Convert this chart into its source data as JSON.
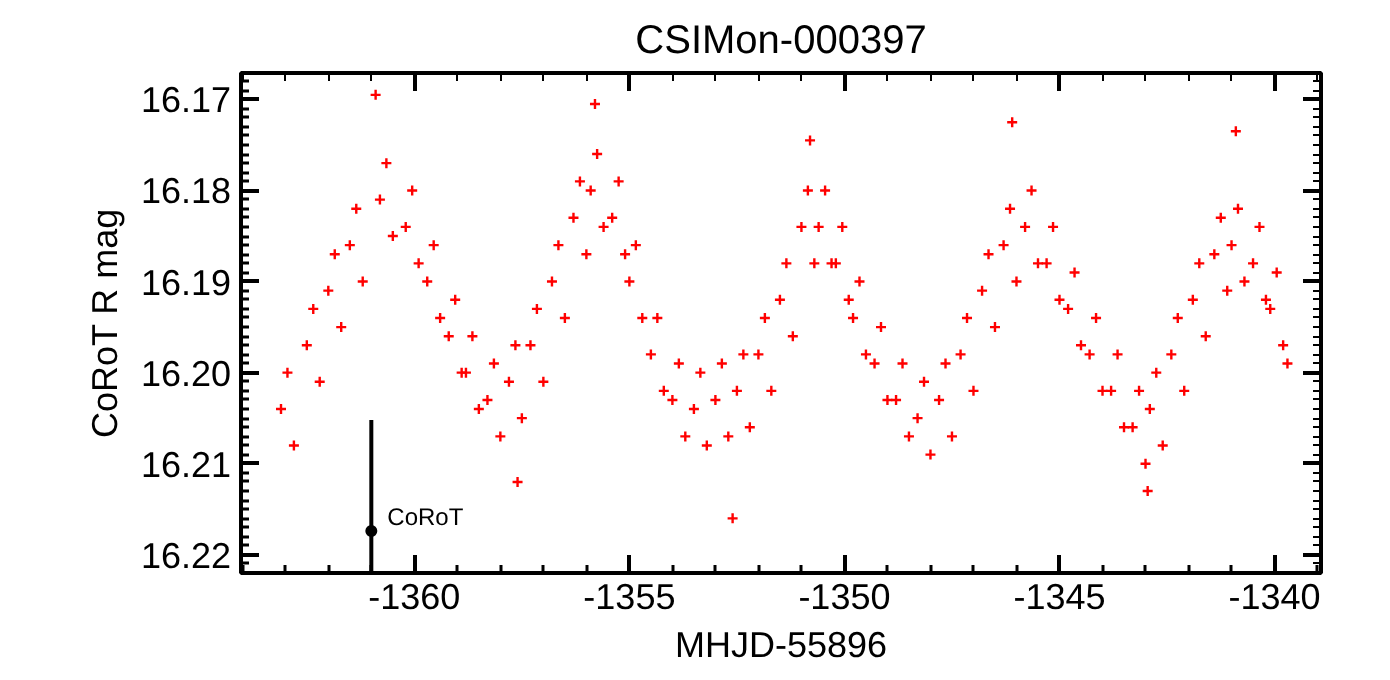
{
  "chart_data": {
    "type": "scatter",
    "title": "CSIMon-000397",
    "xlabel": "MHJD-55896",
    "ylabel": "CoRoT R mag",
    "xlim": [
      -1364.03,
      -1338.92
    ],
    "ylim": [
      16.222,
      16.1671
    ],
    "xticks": [
      -1360,
      -1355,
      -1350,
      -1345,
      -1340
    ],
    "yticks": [
      16.17,
      16.18,
      16.19,
      {
        "value": 16.2,
        "label": "16.20"
      },
      16.21,
      16.22
    ],
    "grid": false,
    "series": [
      {
        "color": "#ff0000",
        "marker": "cross",
        "x": [
          -1363.1,
          -1362.95,
          -1362.8,
          -1362.5,
          -1362.35,
          -1362.2,
          -1362.0,
          -1361.85,
          -1361.7,
          -1361.5,
          -1361.35,
          -1361.2,
          -1360.8,
          -1360.65,
          -1360.5,
          -1360.2,
          -1360.05,
          -1359.9,
          -1359.7,
          -1359.55,
          -1359.4,
          -1359.2,
          -1359.05,
          -1358.9,
          -1358.8,
          -1358.65,
          -1358.5,
          -1358.3,
          -1358.15,
          -1358.0,
          -1357.8,
          -1357.65,
          -1357.5,
          -1357.3,
          -1357.15,
          -1357.0,
          -1356.8,
          -1356.65,
          -1356.5,
          -1356.3,
          -1356.15,
          -1356.0,
          -1355.9,
          -1355.75,
          -1355.6,
          -1355.4,
          -1355.25,
          -1355.1,
          -1355.0,
          -1354.85,
          -1354.7,
          -1354.5,
          -1354.35,
          -1354.2,
          -1354.0,
          -1353.85,
          -1353.7,
          -1353.5,
          -1353.35,
          -1353.2,
          -1353.0,
          -1352.85,
          -1352.7,
          -1352.5,
          -1352.35,
          -1352.2,
          -1352.0,
          -1351.85,
          -1351.7,
          -1351.5,
          -1351.35,
          -1351.2,
          -1351.0,
          -1350.85,
          -1350.7,
          -1350.6,
          -1350.45,
          -1350.3,
          -1350.2,
          -1350.05,
          -1349.9,
          -1349.8,
          -1349.65,
          -1349.5,
          -1349.3,
          -1349.15,
          -1349.0,
          -1348.8,
          -1348.65,
          -1348.5,
          -1348.3,
          -1348.15,
          -1348.0,
          -1347.8,
          -1347.65,
          -1347.5,
          -1347.3,
          -1347.15,
          -1347.0,
          -1346.8,
          -1346.65,
          -1346.5,
          -1346.3,
          -1346.15,
          -1346.0,
          -1345.8,
          -1345.65,
          -1345.5,
          -1345.3,
          -1345.15,
          -1345.0,
          -1344.8,
          -1344.65,
          -1344.5,
          -1344.3,
          -1344.15,
          -1344.0,
          -1343.8,
          -1343.65,
          -1343.5,
          -1343.3,
          -1343.15,
          -1343.0,
          -1342.9,
          -1342.75,
          -1342.6,
          -1342.4,
          -1342.25,
          -1342.1,
          -1341.9,
          -1341.75,
          -1341.6,
          -1341.4,
          -1341.25,
          -1341.1,
          -1341.0,
          -1340.85,
          -1340.7,
          -1340.5,
          -1340.35,
          -1340.2,
          -1340.1,
          -1339.95,
          -1339.8,
          -1339.7,
          -1360.9,
          -1355.8,
          -1346.1,
          -1340.9,
          -1357.6,
          -1352.6,
          -1342.95,
          -1350.8
        ],
        "values": [
          16.204,
          16.2,
          16.208,
          16.197,
          16.193,
          16.201,
          16.191,
          16.187,
          16.195,
          16.186,
          16.182,
          16.19,
          16.181,
          16.177,
          16.185,
          16.184,
          16.18,
          16.188,
          16.19,
          16.186,
          16.194,
          16.196,
          16.192,
          16.2,
          16.2,
          16.196,
          16.204,
          16.203,
          16.199,
          16.207,
          16.201,
          16.197,
          16.205,
          16.197,
          16.193,
          16.201,
          16.19,
          16.186,
          16.194,
          16.183,
          16.179,
          16.187,
          16.18,
          16.176,
          16.184,
          16.183,
          16.179,
          16.187,
          16.19,
          16.186,
          16.194,
          16.198,
          16.194,
          16.202,
          16.203,
          16.199,
          16.207,
          16.204,
          16.2,
          16.208,
          16.203,
          16.199,
          16.207,
          16.202,
          16.198,
          16.206,
          16.198,
          16.194,
          16.202,
          16.192,
          16.188,
          16.196,
          16.184,
          16.18,
          16.188,
          16.184,
          16.18,
          16.188,
          16.188,
          16.184,
          16.192,
          16.194,
          16.19,
          16.198,
          16.199,
          16.195,
          16.203,
          16.203,
          16.199,
          16.207,
          16.205,
          16.201,
          16.209,
          16.203,
          16.199,
          16.207,
          16.198,
          16.194,
          16.202,
          16.191,
          16.187,
          16.195,
          16.186,
          16.182,
          16.19,
          16.184,
          16.18,
          16.188,
          16.188,
          16.184,
          16.192,
          16.193,
          16.189,
          16.197,
          16.198,
          16.194,
          16.202,
          16.202,
          16.198,
          16.206,
          16.206,
          16.202,
          16.21,
          16.204,
          16.2,
          16.208,
          16.198,
          16.194,
          16.202,
          16.192,
          16.188,
          16.196,
          16.187,
          16.183,
          16.191,
          16.186,
          16.182,
          16.19,
          16.188,
          16.184,
          16.192,
          16.193,
          16.189,
          16.197,
          16.199,
          16.1695,
          16.1705,
          16.1725,
          16.1735,
          16.212,
          16.216,
          16.213,
          16.1745
        ]
      },
      {
        "name": "CoRoT",
        "color": "#000000",
        "marker": "circle",
        "x": [
          -1361.0
        ],
        "values": [
          16.2174
        ],
        "errors": [
          [
            16.2052,
            16.222
          ]
        ]
      }
    ]
  }
}
